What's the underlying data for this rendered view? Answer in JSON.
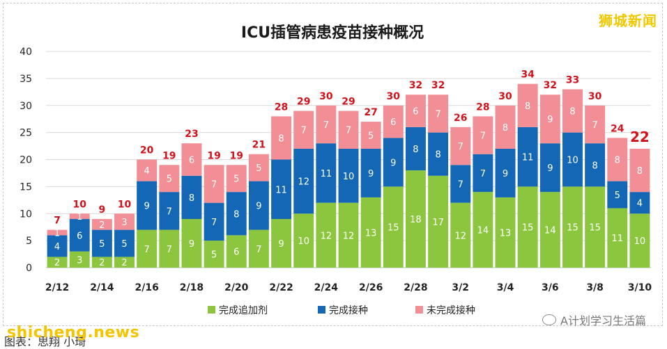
{
  "brand": {
    "cn": "狮城新闻"
  },
  "watermark": {
    "left": "shicheng.news",
    "right": "A计划学习生活篇"
  },
  "caption": "图表：思翔 小琦",
  "colors": {
    "boosted": "#8cc63f",
    "vaccinated": "#1467b5",
    "unvaccinated": "#f28f96",
    "total_label": "#d0121b",
    "bar_label": "#ffffff",
    "grid": "#d9d9d9"
  },
  "chart_data": {
    "type": "bar",
    "stacked": true,
    "title": "ICU插管病患疫苗接种概况",
    "xlabel": "",
    "ylabel": "",
    "ylim": [
      0,
      40
    ],
    "yticks": [
      0,
      5,
      10,
      15,
      20,
      25,
      30,
      35,
      40
    ],
    "grid": true,
    "legend_position": "bottom",
    "categories": [
      "2/12",
      "2/13",
      "2/14",
      "2/15",
      "2/16",
      "2/17",
      "2/18",
      "2/19",
      "2/20",
      "2/21",
      "2/22",
      "2/23",
      "2/24",
      "2/25",
      "2/26",
      "2/27",
      "2/28",
      "3/1",
      "3/2",
      "3/3",
      "3/4",
      "3/5",
      "3/6",
      "3/7",
      "3/8",
      "3/9",
      "3/10"
    ],
    "tick_labels": [
      "2/12",
      "",
      "2/14",
      "",
      "2/16",
      "",
      "2/18",
      "",
      "2/20",
      "",
      "2/22",
      "",
      "2/24",
      "",
      "2/26",
      "",
      "2/28",
      "",
      "3/2",
      "",
      "3/4",
      "",
      "3/6",
      "",
      "3/8",
      "",
      "3/10"
    ],
    "series": [
      {
        "name": "完成追加剂",
        "values": [
          2,
          3,
          2,
          2,
          7,
          7,
          9,
          5,
          6,
          7,
          9,
          10,
          12,
          12,
          13,
          15,
          18,
          17,
          12,
          14,
          13,
          15,
          14,
          15,
          15,
          11,
          10
        ]
      },
      {
        "name": "完成接种",
        "values": [
          4,
          6,
          5,
          5,
          9,
          7,
          8,
          7,
          8,
          9,
          11,
          12,
          11,
          10,
          9,
          9,
          8,
          8,
          7,
          7,
          9,
          11,
          9,
          10,
          8,
          5,
          4
        ]
      },
      {
        "name": "未完成接种",
        "values": [
          1,
          1,
          2,
          3,
          4,
          5,
          6,
          7,
          5,
          5,
          8,
          7,
          7,
          7,
          5,
          6,
          6,
          7,
          7,
          7,
          8,
          8,
          9,
          8,
          7,
          8,
          8
        ]
      }
    ],
    "totals": [
      7,
      10,
      9,
      10,
      20,
      19,
      23,
      19,
      19,
      21,
      28,
      29,
      30,
      29,
      27,
      30,
      32,
      32,
      26,
      28,
      30,
      34,
      32,
      33,
      30,
      24,
      22
    ],
    "highlight_last_total": true
  }
}
